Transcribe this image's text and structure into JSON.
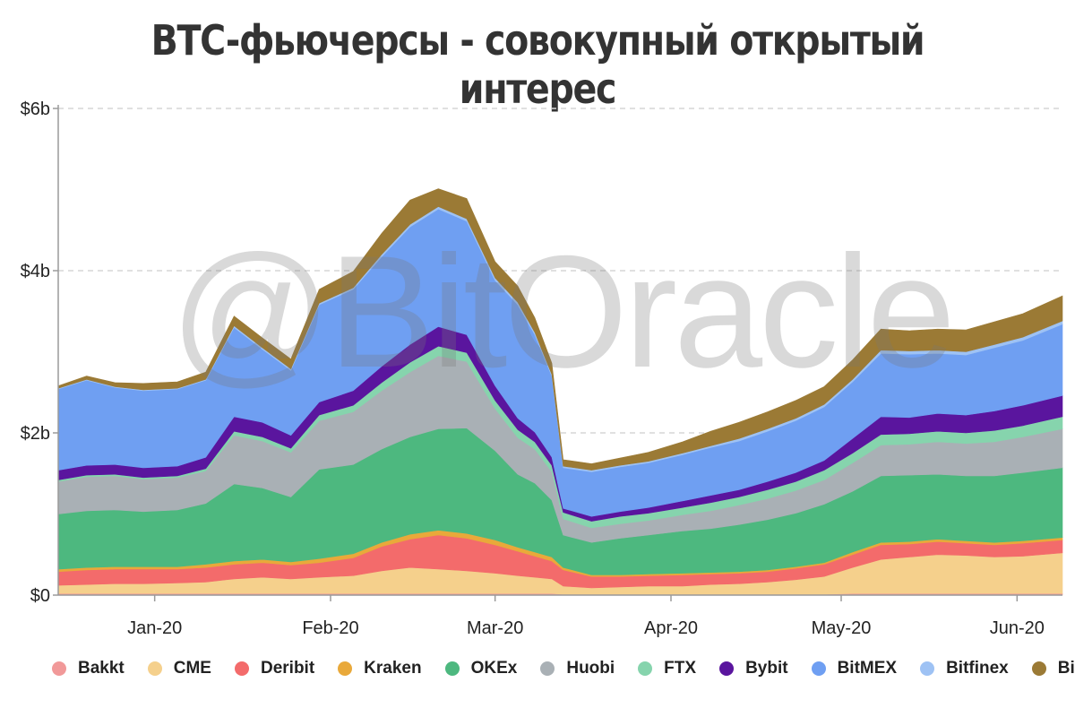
{
  "chart_data": {
    "type": "area",
    "stacked": true,
    "title": "BTC-фьючерсы - совокупный открытый интерес",
    "watermark": "@BitOracle",
    "y_ticks": [
      "$0",
      "$2b",
      "$4b",
      "$6b"
    ],
    "y_tick_values": [
      0,
      2,
      4,
      6
    ],
    "ylim": [
      0,
      6
    ],
    "y_unit": "billion USD",
    "x_ticks": [
      "Jan-20",
      "Feb-20",
      "Mar-20",
      "Apr-20",
      "May-20",
      "Jun-20"
    ],
    "x_tick_values": [
      "2020-01-01",
      "2020-02-01",
      "2020-03-01",
      "2020-04-01",
      "2020-05-01",
      "2020-06-01"
    ],
    "xlim": [
      "2019-12-15",
      "2020-06-09"
    ],
    "grid": "horizontal dashed",
    "legend_position": "bottom",
    "x": [
      "2019-12-15",
      "2019-12-20",
      "2019-12-25",
      "2019-12-30",
      "2020-01-05",
      "2020-01-10",
      "2020-01-15",
      "2020-01-20",
      "2020-01-25",
      "2020-01-30",
      "2020-02-05",
      "2020-02-10",
      "2020-02-15",
      "2020-02-20",
      "2020-02-25",
      "2020-03-01",
      "2020-03-05",
      "2020-03-08",
      "2020-03-11",
      "2020-03-13",
      "2020-03-18",
      "2020-03-23",
      "2020-03-28",
      "2020-04-03",
      "2020-04-08",
      "2020-04-13",
      "2020-04-18",
      "2020-04-23",
      "2020-04-28",
      "2020-05-03",
      "2020-05-08",
      "2020-05-13",
      "2020-05-18",
      "2020-05-23",
      "2020-05-28",
      "2020-06-02",
      "2020-06-09"
    ],
    "series": [
      {
        "name": "Bakkt",
        "color": "#f19999",
        "values": [
          0.02,
          0.02,
          0.02,
          0.02,
          0.02,
          0.02,
          0.02,
          0.02,
          0.02,
          0.02,
          0.02,
          0.02,
          0.02,
          0.02,
          0.02,
          0.02,
          0.02,
          0.02,
          0.02,
          0.01,
          0.01,
          0.01,
          0.01,
          0.01,
          0.01,
          0.01,
          0.01,
          0.01,
          0.01,
          0.02,
          0.02,
          0.02,
          0.02,
          0.02,
          0.02,
          0.02,
          0.02
        ]
      },
      {
        "name": "CME",
        "color": "#f5d08c",
        "values": [
          0.1,
          0.11,
          0.12,
          0.12,
          0.13,
          0.14,
          0.18,
          0.2,
          0.18,
          0.2,
          0.22,
          0.28,
          0.32,
          0.3,
          0.28,
          0.25,
          0.22,
          0.2,
          0.18,
          0.1,
          0.08,
          0.09,
          0.1,
          0.1,
          0.12,
          0.13,
          0.15,
          0.18,
          0.22,
          0.32,
          0.42,
          0.45,
          0.48,
          0.47,
          0.45,
          0.46,
          0.5
        ]
      },
      {
        "name": "Deribit",
        "color": "#f36b6b",
        "values": [
          0.17,
          0.18,
          0.18,
          0.18,
          0.17,
          0.18,
          0.18,
          0.18,
          0.17,
          0.18,
          0.22,
          0.3,
          0.35,
          0.42,
          0.4,
          0.35,
          0.3,
          0.26,
          0.22,
          0.2,
          0.14,
          0.13,
          0.13,
          0.14,
          0.13,
          0.13,
          0.13,
          0.14,
          0.15,
          0.16,
          0.18,
          0.16,
          0.16,
          0.15,
          0.15,
          0.16,
          0.16
        ]
      },
      {
        "name": "Kraken",
        "color": "#e9a93a",
        "values": [
          0.03,
          0.03,
          0.03,
          0.03,
          0.03,
          0.04,
          0.04,
          0.04,
          0.04,
          0.05,
          0.05,
          0.05,
          0.06,
          0.06,
          0.06,
          0.06,
          0.05,
          0.05,
          0.05,
          0.03,
          0.02,
          0.02,
          0.02,
          0.02,
          0.02,
          0.02,
          0.02,
          0.02,
          0.02,
          0.03,
          0.03,
          0.03,
          0.03,
          0.03,
          0.03,
          0.03,
          0.03
        ]
      },
      {
        "name": "OKEx",
        "color": "#4db87f",
        "values": [
          0.68,
          0.7,
          0.7,
          0.68,
          0.7,
          0.75,
          0.95,
          0.88,
          0.8,
          1.1,
          1.1,
          1.15,
          1.2,
          1.25,
          1.3,
          1.1,
          0.9,
          0.85,
          0.7,
          0.4,
          0.4,
          0.45,
          0.48,
          0.52,
          0.54,
          0.58,
          0.62,
          0.66,
          0.72,
          0.75,
          0.82,
          0.82,
          0.8,
          0.8,
          0.82,
          0.84,
          0.86
        ]
      },
      {
        "name": "Huobi",
        "color": "#a9b0b5",
        "values": [
          0.4,
          0.42,
          0.42,
          0.4,
          0.4,
          0.4,
          0.6,
          0.58,
          0.55,
          0.6,
          0.65,
          0.72,
          0.8,
          0.9,
          0.82,
          0.52,
          0.45,
          0.42,
          0.35,
          0.2,
          0.18,
          0.18,
          0.18,
          0.2,
          0.22,
          0.24,
          0.26,
          0.28,
          0.3,
          0.35,
          0.38,
          0.38,
          0.4,
          0.4,
          0.42,
          0.44,
          0.48
        ]
      },
      {
        "name": "FTX",
        "color": "#86d4ad",
        "values": [
          0.02,
          0.02,
          0.02,
          0.02,
          0.02,
          0.03,
          0.05,
          0.05,
          0.05,
          0.07,
          0.08,
          0.1,
          0.12,
          0.12,
          0.11,
          0.1,
          0.1,
          0.09,
          0.08,
          0.08,
          0.08,
          0.09,
          0.09,
          0.09,
          0.1,
          0.1,
          0.11,
          0.11,
          0.12,
          0.12,
          0.13,
          0.13,
          0.13,
          0.13,
          0.14,
          0.14,
          0.15
        ]
      },
      {
        "name": "Bybit",
        "color": "#5a159e",
        "values": [
          0.12,
          0.12,
          0.12,
          0.12,
          0.12,
          0.14,
          0.18,
          0.18,
          0.16,
          0.16,
          0.18,
          0.2,
          0.22,
          0.24,
          0.22,
          0.18,
          0.14,
          0.12,
          0.1,
          0.05,
          0.06,
          0.06,
          0.07,
          0.08,
          0.09,
          0.09,
          0.1,
          0.11,
          0.12,
          0.18,
          0.22,
          0.2,
          0.22,
          0.22,
          0.24,
          0.25,
          0.26
        ]
      },
      {
        "name": "BitMEX",
        "color": "#6f9ff2",
        "values": [
          1.0,
          1.05,
          0.95,
          0.95,
          0.95,
          0.95,
          1.1,
          0.9,
          0.8,
          1.2,
          1.25,
          1.35,
          1.45,
          1.45,
          1.4,
          1.3,
          1.4,
          1.2,
          1.0,
          0.5,
          0.55,
          0.55,
          0.55,
          0.57,
          0.59,
          0.6,
          0.62,
          0.64,
          0.66,
          0.7,
          0.78,
          0.78,
          0.74,
          0.74,
          0.78,
          0.8,
          0.88
        ]
      },
      {
        "name": "Bitfinex",
        "color": "#9ec2f4",
        "values": [
          0.01,
          0.01,
          0.01,
          0.01,
          0.01,
          0.01,
          0.02,
          0.02,
          0.02,
          0.02,
          0.02,
          0.03,
          0.03,
          0.03,
          0.03,
          0.03,
          0.03,
          0.03,
          0.02,
          0.02,
          0.02,
          0.02,
          0.02,
          0.02,
          0.02,
          0.03,
          0.03,
          0.03,
          0.03,
          0.03,
          0.04,
          0.04,
          0.04,
          0.04,
          0.04,
          0.04,
          0.04
        ]
      },
      {
        "name": "Binance",
        "color": "#9b7a35",
        "values": [
          0.03,
          0.04,
          0.05,
          0.08,
          0.08,
          0.09,
          0.12,
          0.12,
          0.12,
          0.17,
          0.2,
          0.26,
          0.3,
          0.22,
          0.25,
          0.2,
          0.2,
          0.18,
          0.14,
          0.08,
          0.08,
          0.09,
          0.11,
          0.14,
          0.18,
          0.2,
          0.21,
          0.22,
          0.22,
          0.24,
          0.26,
          0.25,
          0.26,
          0.27,
          0.28,
          0.29,
          0.31
        ]
      }
    ]
  }
}
